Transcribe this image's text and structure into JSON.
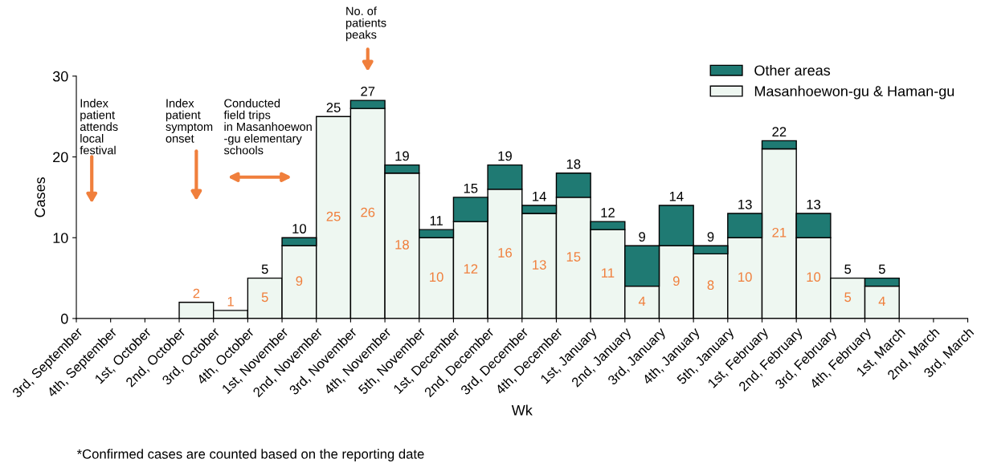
{
  "chart_data": {
    "type": "bar",
    "stacked": true,
    "xlabel": "Wk",
    "ylabel": "Cases",
    "categories": [
      "3rd, September",
      "4th, September",
      "1st, October",
      "2nd, October",
      "3rd, October",
      "4th, October",
      "1st, November",
      "2nd, November",
      "3rd, November",
      "4th, November",
      "5th, November",
      "1st, December",
      "2nd, December",
      "3rd, December",
      "4th, December",
      "1st, January",
      "2nd, January",
      "3rd, January",
      "4th, January",
      "5th, January",
      "1st, February",
      "2nd, February",
      "3rd, February",
      "4th, February",
      "1st, March",
      "2nd, March",
      "3rd, March"
    ],
    "series": [
      {
        "name": "Masanhoewon-gu & Haman-gu",
        "color": "#eef7f1",
        "values": [
          null,
          null,
          null,
          2,
          1,
          5,
          9,
          25,
          26,
          18,
          10,
          12,
          16,
          13,
          15,
          11,
          4,
          9,
          8,
          10,
          21,
          10,
          5,
          4,
          null,
          null,
          null
        ],
        "value_labels": [
          null,
          null,
          null,
          "2",
          "1",
          "5",
          "9",
          "25",
          "26",
          "18",
          "10",
          "12",
          "16",
          "13",
          "15",
          "11",
          "4",
          "9",
          "8",
          "10",
          "21",
          "10",
          "5",
          "4",
          null,
          null,
          null
        ]
      },
      {
        "name": "Other areas",
        "color": "#1f7a73",
        "values": [
          null,
          null,
          null,
          null,
          null,
          null,
          1,
          null,
          1,
          1,
          1,
          3,
          3,
          1,
          3,
          1,
          5,
          5,
          1,
          3,
          1,
          3,
          null,
          1,
          null,
          null,
          null
        ]
      }
    ],
    "totals": [
      null,
      null,
      null,
      null,
      null,
      "5",
      "10",
      "25",
      "27",
      "19",
      "11",
      "15",
      "19",
      "14",
      "18",
      "12",
      "9",
      "14",
      "9",
      "13",
      "22",
      "13",
      "5",
      "5",
      null,
      null,
      null
    ],
    "ylim": [
      0,
      30
    ],
    "yticks": [
      0,
      10,
      20,
      30
    ],
    "grid": false,
    "legend": "top right",
    "annotations": [
      "Index\npatient\nattends\nlocal\nfestival",
      "Index\npatient\nsymptom\nonset",
      "Conducted\nfield trips\nin Masanhoewon\n-gu elementary\nschools",
      "No. of\npatients\npeaks",
      "*Confirmed cases are counted based on the reporting date"
    ]
  }
}
